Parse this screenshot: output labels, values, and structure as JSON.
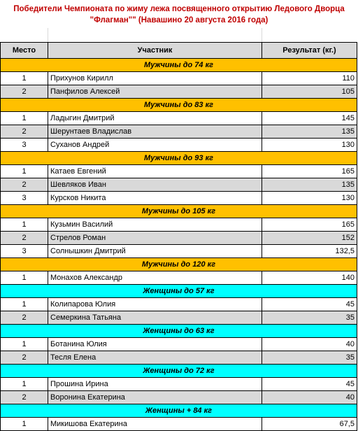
{
  "title_line1": "Победители Чемпионата по жиму лежа посвященного открытию Ледового Дворца",
  "title_line2": "\"Флагман\"\" (Навашино 20 августа 2016 года)",
  "headers": {
    "place": "Место",
    "participant": "Участник",
    "result": "Результат (кг.)"
  },
  "categories": [
    {
      "name": "Мужчины до 74 кг",
      "group": "men",
      "rows": [
        {
          "place": "1",
          "name": "Прихунов Кирилл",
          "result": "110"
        },
        {
          "place": "2",
          "name": "Панфилов Алексей",
          "result": "105"
        }
      ]
    },
    {
      "name": "Мужчины до 83 кг",
      "group": "men",
      "rows": [
        {
          "place": "1",
          "name": "Ладыгин Дмитрий",
          "result": "145"
        },
        {
          "place": "2",
          "name": "Шерунтаев Владислав",
          "result": "135"
        },
        {
          "place": "3",
          "name": "Суханов Андрей",
          "result": "130"
        }
      ]
    },
    {
      "name": "Мужчины до 93 кг",
      "group": "men",
      "rows": [
        {
          "place": "1",
          "name": "Катаев Евгений",
          "result": "165"
        },
        {
          "place": "2",
          "name": "Шевляков Иван",
          "result": "135"
        },
        {
          "place": "3",
          "name": "Курсков Никита",
          "result": "130"
        }
      ]
    },
    {
      "name": "Мужчины до 105 кг",
      "group": "men",
      "rows": [
        {
          "place": "1",
          "name": "Кузьмин Василий",
          "result": "165"
        },
        {
          "place": "2",
          "name": "Стрелов Роман",
          "result": "152"
        },
        {
          "place": "3",
          "name": "Солнышкин Дмитрий",
          "result": "132,5"
        }
      ]
    },
    {
      "name": "Мужчины до 120 кг",
      "group": "men",
      "rows": [
        {
          "place": "1",
          "name": "Монахов Александр",
          "result": "140"
        }
      ]
    },
    {
      "name": "Женщины до 57 кг",
      "group": "women",
      "rows": [
        {
          "place": "1",
          "name": "Колипарова Юлия",
          "result": "45"
        },
        {
          "place": "2",
          "name": "Семеркина Татьяна",
          "result": "35"
        }
      ]
    },
    {
      "name": "Женщины до 63 кг",
      "group": "women",
      "rows": [
        {
          "place": "1",
          "name": "Ботанина Юлия",
          "result": "40"
        },
        {
          "place": "2",
          "name": "Тесля Елена",
          "result": "35"
        }
      ]
    },
    {
      "name": "Женщины до 72 кг",
      "group": "women",
      "rows": [
        {
          "place": "1",
          "name": "Прошина Ирина",
          "result": "45"
        },
        {
          "place": "2",
          "name": "Воронина Екатерина",
          "result": "40"
        }
      ]
    },
    {
      "name": "Женщины + 84 кг",
      "group": "women",
      "rows": [
        {
          "place": "1",
          "name": "Микишова Екатерина",
          "result": "67,5"
        }
      ]
    }
  ],
  "colors": {
    "men_header": "#ffc000",
    "women_header": "#00ffff",
    "title": "#c00000",
    "stripe": "#d9d9d9"
  }
}
